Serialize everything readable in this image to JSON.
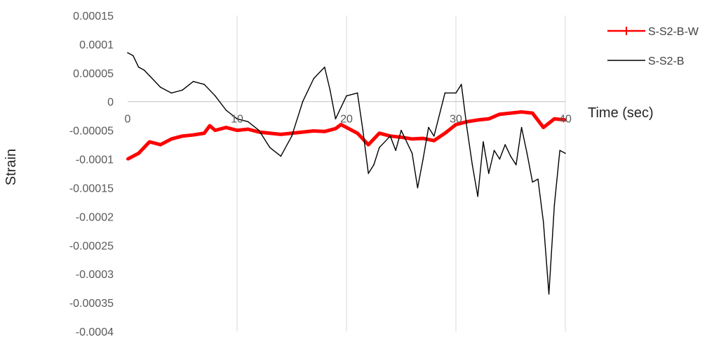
{
  "chart_data": {
    "type": "line",
    "xlabel": "Time (sec)",
    "ylabel": "Strain",
    "xlim": [
      0,
      40
    ],
    "ylim": [
      -0.0004,
      0.00015
    ],
    "x_ticks": [
      0,
      10,
      20,
      30,
      40
    ],
    "x_tick_labels": [
      "0",
      "10",
      "20",
      "30",
      "40"
    ],
    "y_ticks": [
      0.00015,
      0.0001,
      5e-05,
      0,
      -5e-05,
      -0.0001,
      -0.00015,
      -0.0002,
      -0.00025,
      -0.0003,
      -0.00035,
      -0.0004
    ],
    "y_tick_labels": [
      "0.00015",
      "0.0001",
      "0.00005",
      "0",
      "-0.00005",
      "-0.0001",
      "-0.00015",
      "-0.0002",
      "-0.00025",
      "-0.0003",
      "-0.00035",
      "-0.0004"
    ],
    "grid": "vertical",
    "legend_position": "top-right",
    "series": [
      {
        "name": "S-S2-B-W",
        "color": "#ff0000",
        "marker": "plus",
        "x": [
          0,
          1,
          2,
          3,
          4,
          5,
          6,
          7,
          7.5,
          8,
          9,
          10,
          11,
          12,
          13,
          14,
          15,
          16,
          17,
          18,
          19,
          19.5,
          20,
          21,
          22,
          23,
          24,
          25,
          26,
          27,
          28,
          29,
          30,
          31,
          32,
          33,
          34,
          35,
          36,
          37,
          38,
          39,
          40
        ],
        "y": [
          -0.0001,
          -9e-05,
          -7e-05,
          -7.5e-05,
          -6.5e-05,
          -6e-05,
          -5.8e-05,
          -5.5e-05,
          -4.2e-05,
          -5e-05,
          -4.5e-05,
          -5e-05,
          -4.8e-05,
          -5.3e-05,
          -5.5e-05,
          -5.7e-05,
          -5.5e-05,
          -5.3e-05,
          -5.1e-05,
          -5.2e-05,
          -4.7e-05,
          -4e-05,
          -4.5e-05,
          -5.5e-05,
          -7.5e-05,
          -5.5e-05,
          -6e-05,
          -6.2e-05,
          -6.5e-05,
          -6.4e-05,
          -6.8e-05,
          -5.5e-05,
          -4e-05,
          -3.5e-05,
          -3.2e-05,
          -3e-05,
          -2.2e-05,
          -2e-05,
          -1.8e-05,
          -2e-05,
          -4.5e-05,
          -3e-05,
          -3.2e-05
        ]
      },
      {
        "name": "S-S2-B",
        "color": "#000000",
        "x": [
          0,
          0.5,
          1,
          1.5,
          2,
          3,
          4,
          5,
          6,
          7,
          8,
          9,
          10,
          11,
          12,
          13,
          14,
          15,
          16,
          17,
          18,
          18.5,
          19,
          20,
          21,
          21.5,
          22,
          22.5,
          23,
          24,
          24.5,
          25,
          26,
          26.5,
          27,
          27.5,
          28,
          29,
          30,
          30.5,
          31,
          31.5,
          32,
          32.5,
          33,
          33.5,
          34,
          34.5,
          35,
          35.5,
          36,
          36.5,
          37,
          37.5,
          38,
          38.5,
          39,
          39.5,
          40
        ],
        "y": [
          8.5e-05,
          8e-05,
          6e-05,
          5.5e-05,
          4.5e-05,
          2.5e-05,
          1.5e-05,
          2e-05,
          3.5e-05,
          3e-05,
          1e-05,
          -1.5e-05,
          -3e-05,
          -3.5e-05,
          -5e-05,
          -8e-05,
          -9.5e-05,
          -6e-05,
          0.0,
          4e-05,
          6e-05,
          2e-05,
          -3e-05,
          1e-05,
          1.5e-05,
          -5e-05,
          -0.000125,
          -0.00011,
          -8e-05,
          -6e-05,
          -8.5e-05,
          -5e-05,
          -9e-05,
          -0.00015,
          -0.0001,
          -4.5e-05,
          -6e-05,
          1.5e-05,
          1.5e-05,
          3e-05,
          -4.5e-05,
          -0.00011,
          -0.000165,
          -7e-05,
          -0.000125,
          -8.5e-05,
          -0.0001,
          -7.5e-05,
          -9.5e-05,
          -0.00011,
          -4.5e-05,
          -9e-05,
          -0.00014,
          -0.000135,
          -0.00021,
          -0.000335,
          -0.00018,
          -8.5e-05,
          -9e-05
        ]
      }
    ]
  }
}
